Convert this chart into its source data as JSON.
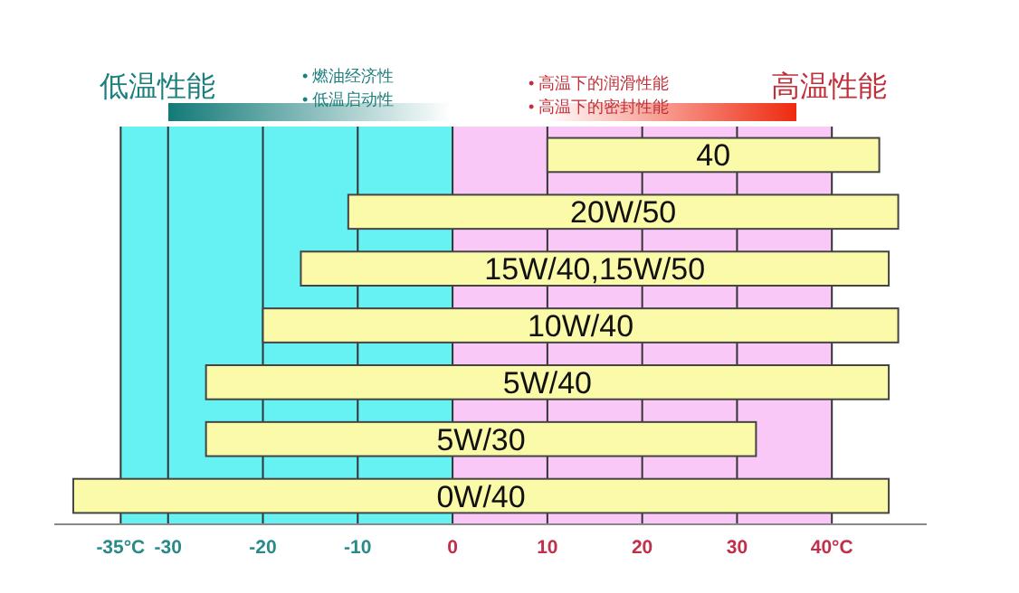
{
  "chart_data": {
    "type": "bar",
    "orientation": "horizontal",
    "categories": [
      "40",
      "20W/50",
      "15W/40,15W/50",
      "10W/40",
      "5W/40",
      "5W/30",
      "0W/40"
    ],
    "base": [
      10,
      -11,
      -16,
      -20,
      -26,
      -26,
      -40
    ],
    "values": [
      35,
      58,
      62,
      67,
      72,
      58,
      86
    ],
    "color": "#fafaa8",
    "xlim": [
      -42,
      50
    ],
    "xticks": [
      {
        "value": -35,
        "label": "-35°C"
      },
      -30,
      -20,
      -10,
      0,
      10,
      20,
      30,
      {
        "value": 40,
        "label": "40°C"
      }
    ],
    "grid": "x",
    "tick_labels": "x",
    "bands": [
      {
        "axis": "x",
        "from": -35,
        "to": 0,
        "color": "#66f2f2"
      },
      {
        "axis": "x",
        "from": 0,
        "to": 40,
        "color": "#fac8f6"
      }
    ],
    "annotations": [
      "低温性能",
      "• 燃油经济性",
      "• 低温启动性",
      "• 高温下的润滑性能",
      "• 高温下的密封性能",
      "高温性能"
    ]
  }
}
